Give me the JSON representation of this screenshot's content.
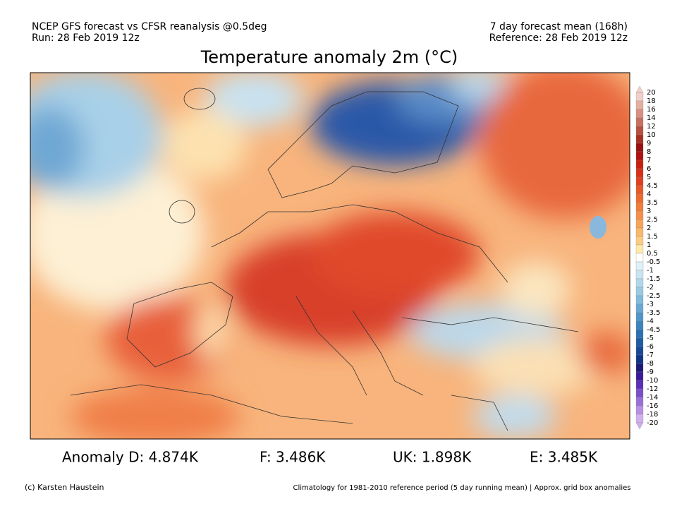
{
  "header": {
    "left_lines": [
      "NCEP GFS forecast vs CFSR reanalysis @0.5deg",
      "Run: 28 Feb 2019 12z"
    ],
    "right_lines": [
      "7 day forecast mean (168h)",
      "Reference: 28 Feb 2019 12z"
    ],
    "title": "Temperature anomaly 2m (°C)"
  },
  "colorbar": {
    "labels": [
      20,
      18,
      16,
      14,
      12,
      10,
      9,
      8,
      7,
      6,
      5,
      4.5,
      4,
      3.5,
      3,
      2.5,
      2,
      1.5,
      1,
      0.5,
      -0.5,
      -1,
      -1.5,
      -2,
      -2.5,
      -3,
      -3.5,
      -4,
      -4.5,
      -5,
      -6,
      -7,
      -8,
      -9,
      -10,
      -12,
      -14,
      -16,
      -18,
      -20
    ],
    "colors": [
      "#f0d0c8",
      "#e4b0a0",
      "#d89080",
      "#c87060",
      "#b85040",
      "#a83020",
      "#981010",
      "#b01010",
      "#c82010",
      "#d83018",
      "#e04020",
      "#e85828",
      "#ee6a30",
      "#f27c3a",
      "#f59048",
      "#f8a458",
      "#fab86a",
      "#fccc80",
      "#feeaa8",
      "#ffffff",
      "#e0f0f8",
      "#c8e4f2",
      "#b0d8ec",
      "#98cae4",
      "#80badc",
      "#68a8d2",
      "#5096c8",
      "#3c84be",
      "#2c70b2",
      "#205ca4",
      "#184896",
      "#103486",
      "#1a1a78",
      "#3a1a9a",
      "#5a30b8",
      "#7a50c8",
      "#9a70d8",
      "#b890e4",
      "#d0b0ee"
    ]
  },
  "anomalies": [
    "Anomaly D: 4.874K",
    "F: 3.486K",
    "UK: 1.898K",
    "E: 3.485K"
  ],
  "footer": {
    "credit": "(c) Karsten Haustein",
    "note": "Climatology for 1981-2010 reference period (5 day running mean) | Approx. grid box anomalies"
  }
}
